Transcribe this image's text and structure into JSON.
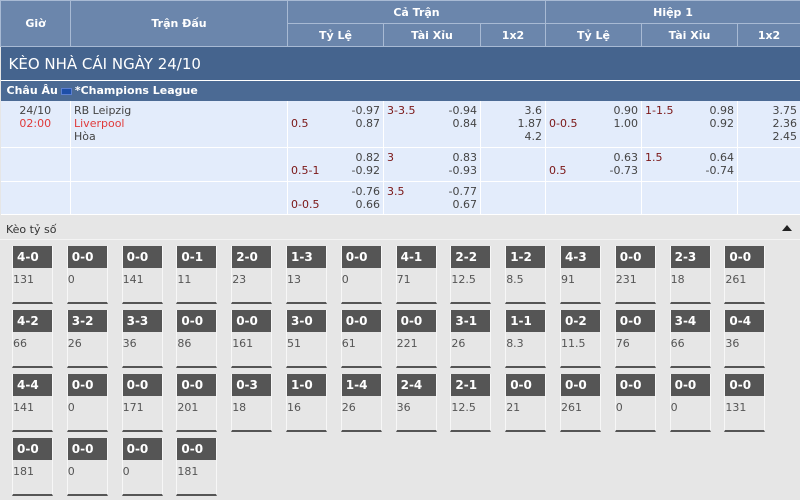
{
  "header": {
    "gio": "Giờ",
    "tran_dau": "Trận Đấu",
    "ca_tran": "Cả Trận",
    "hiep1": "Hiệp 1",
    "ty_le": "Tỷ Lệ",
    "tai_xiu": "Tài Xỉu",
    "x12": "1x2"
  },
  "title": "KÈO NHÀ CÁI NGÀY 24/10",
  "league": {
    "region": "Châu Âu",
    "name": "*Champions League"
  },
  "match": {
    "date": "24/10",
    "time": "02:00",
    "home": "RB Leipzig",
    "away": "Liverpool",
    "draw": "Hòa"
  },
  "rows": [
    {
      "hdp": "0.5",
      "hdp_o": [
        "-0.97",
        "0.87"
      ],
      "ou": "3-3.5",
      "ou_o": [
        "-0.94",
        "0.84"
      ],
      "x12": [
        "3.6",
        "1.87",
        "4.2"
      ],
      "h1_hdp": "0-0.5",
      "h1_hdp_o": [
        "0.90",
        "1.00"
      ],
      "h1_ou": "1-1.5",
      "h1_ou_o": [
        "0.98",
        "0.92"
      ],
      "h1_x12": [
        "3.75",
        "2.36",
        "2.45"
      ]
    },
    {
      "hdp": "0.5-1",
      "hdp_o": [
        "0.82",
        "-0.92"
      ],
      "ou": "3",
      "ou_o": [
        "0.83",
        "-0.93"
      ],
      "h1_hdp": "0.5",
      "h1_hdp_o": [
        "0.63",
        "-0.73"
      ],
      "h1_ou": "1.5",
      "h1_ou_o": [
        "0.64",
        "-0.74"
      ]
    },
    {
      "hdp": "0-0.5",
      "hdp_o": [
        "-0.76",
        "0.66"
      ],
      "ou": "3.5",
      "ou_o": [
        "-0.77",
        "0.67"
      ]
    }
  ],
  "score_section": {
    "label": "Kèo tỷ số",
    "toggle_icon": "caret-up-icon"
  },
  "scores": [
    [
      "4-0",
      "131"
    ],
    [
      "0-0",
      "0"
    ],
    [
      "0-0",
      "141"
    ],
    [
      "0-1",
      "11"
    ],
    [
      "2-0",
      "23"
    ],
    [
      "1-3",
      "13"
    ],
    [
      "0-0",
      "0"
    ],
    [
      "4-1",
      "71"
    ],
    [
      "2-2",
      "12.5"
    ],
    [
      "1-2",
      "8.5"
    ],
    [
      "4-3",
      "91"
    ],
    [
      "0-0",
      "231"
    ],
    [
      "2-3",
      "18"
    ],
    [
      "0-0",
      "261"
    ],
    [
      "4-2",
      "66"
    ],
    [
      "3-2",
      "26"
    ],
    [
      "3-3",
      "36"
    ],
    [
      "0-0",
      "86"
    ],
    [
      "0-0",
      "161"
    ],
    [
      "3-0",
      "51"
    ],
    [
      "0-0",
      "61"
    ],
    [
      "0-0",
      "221"
    ],
    [
      "3-1",
      "26"
    ],
    [
      "1-1",
      "8.3"
    ],
    [
      "0-2",
      "11.5"
    ],
    [
      "0-0",
      "76"
    ],
    [
      "3-4",
      "66"
    ],
    [
      "0-4",
      "36"
    ],
    [
      "4-4",
      "141"
    ],
    [
      "0-0",
      "0"
    ],
    [
      "0-0",
      "171"
    ],
    [
      "0-0",
      "201"
    ],
    [
      "0-3",
      "18"
    ],
    [
      "1-0",
      "16"
    ],
    [
      "1-4",
      "26"
    ],
    [
      "2-4",
      "36"
    ],
    [
      "2-1",
      "12.5"
    ],
    [
      "0-0",
      "21"
    ],
    [
      "0-0",
      "261"
    ],
    [
      "0-0",
      "0"
    ],
    [
      "0-0",
      "0"
    ],
    [
      "0-0",
      "131"
    ],
    [
      "0-0",
      "181"
    ],
    [
      "0-0",
      "0"
    ],
    [
      "0-0",
      "0"
    ],
    [
      "0-0",
      "181"
    ]
  ]
}
